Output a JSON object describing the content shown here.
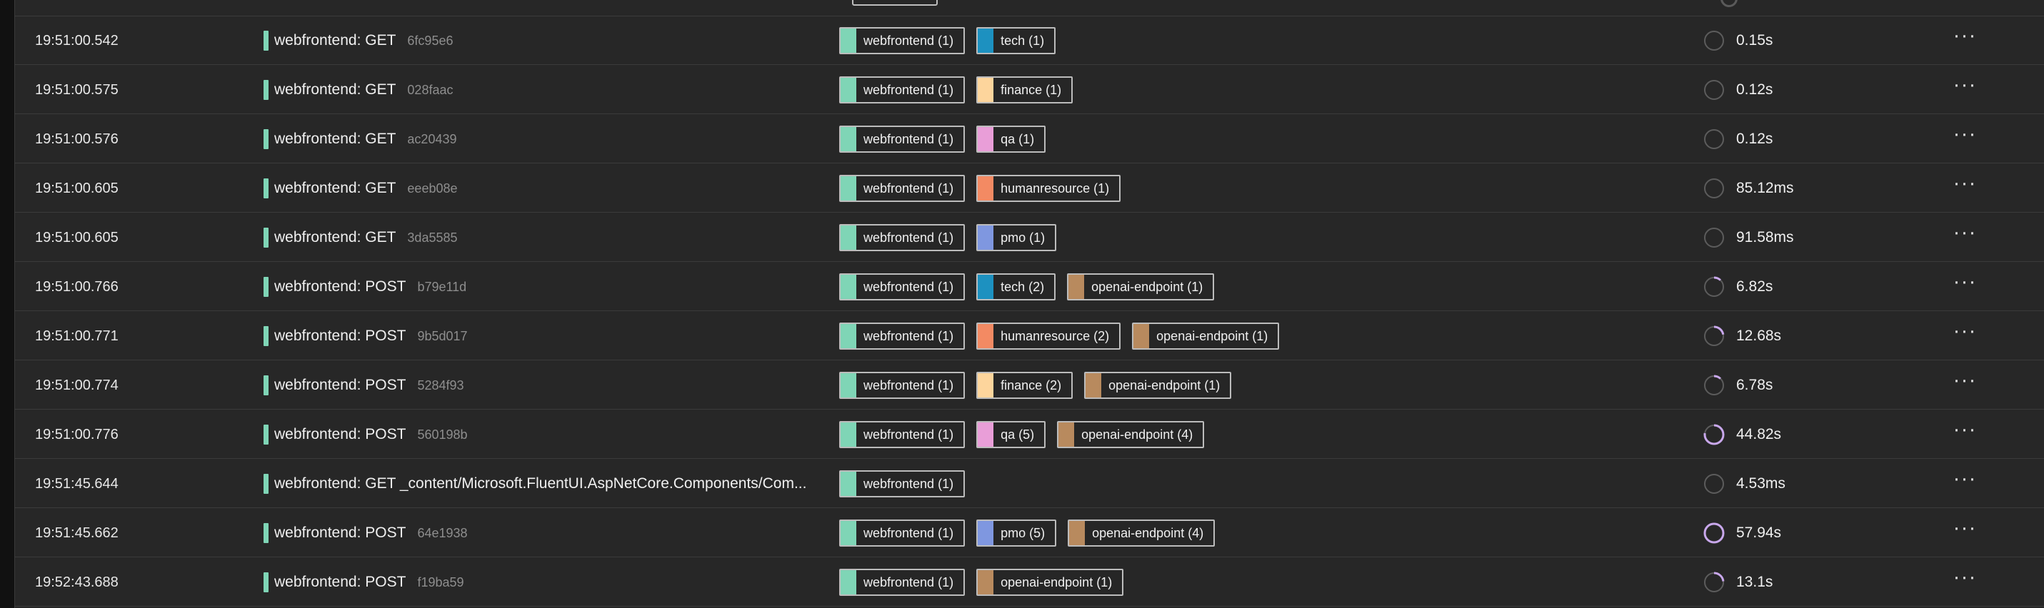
{
  "colors": {
    "webfrontend": "#7fd5b6",
    "tech": "#1d91c0",
    "finance": "#fdd59c",
    "qa": "#e99ed8",
    "humanresource": "#f38a63",
    "pmo": "#7f97e0",
    "openai-endpoint": "#b88a5e"
  },
  "rows": [
    {
      "time": "19:51:00.542",
      "name": "webfrontend: GET",
      "id": "6fc95e6",
      "spans": [
        {
          "service": "webfrontend",
          "label": "webfrontend (1)"
        },
        {
          "service": "tech",
          "label": "tech (1)"
        }
      ],
      "progress": 0,
      "duration": "0.15s"
    },
    {
      "time": "19:51:00.575",
      "name": "webfrontend: GET",
      "id": "028faac",
      "spans": [
        {
          "service": "webfrontend",
          "label": "webfrontend (1)"
        },
        {
          "service": "finance",
          "label": "finance (1)"
        }
      ],
      "progress": 0,
      "duration": "0.12s"
    },
    {
      "time": "19:51:00.576",
      "name": "webfrontend: GET",
      "id": "ac20439",
      "spans": [
        {
          "service": "webfrontend",
          "label": "webfrontend (1)"
        },
        {
          "service": "qa",
          "label": "qa (1)"
        }
      ],
      "progress": 0,
      "duration": "0.12s"
    },
    {
      "time": "19:51:00.605",
      "name": "webfrontend: GET",
      "id": "eeeb08e",
      "spans": [
        {
          "service": "webfrontend",
          "label": "webfrontend (1)"
        },
        {
          "service": "humanresource",
          "label": "humanresource (1)"
        }
      ],
      "progress": 0,
      "duration": "85.12ms"
    },
    {
      "time": "19:51:00.605",
      "name": "webfrontend: GET",
      "id": "3da5585",
      "spans": [
        {
          "service": "webfrontend",
          "label": "webfrontend (1)"
        },
        {
          "service": "pmo",
          "label": "pmo (1)"
        }
      ],
      "progress": 0,
      "duration": "91.58ms"
    },
    {
      "time": "19:51:00.766",
      "name": "webfrontend: POST",
      "id": "b79e11d",
      "spans": [
        {
          "service": "webfrontend",
          "label": "webfrontend (1)"
        },
        {
          "service": "tech",
          "label": "tech (2)"
        },
        {
          "service": "openai-endpoint",
          "label": "openai-endpoint (1)"
        }
      ],
      "progress": 0.12,
      "duration": "6.82s"
    },
    {
      "time": "19:51:00.771",
      "name": "webfrontend: POST",
      "id": "9b5d017",
      "spans": [
        {
          "service": "webfrontend",
          "label": "webfrontend (1)"
        },
        {
          "service": "humanresource",
          "label": "humanresource (2)"
        },
        {
          "service": "openai-endpoint",
          "label": "openai-endpoint (1)"
        }
      ],
      "progress": 0.22,
      "duration": "12.68s"
    },
    {
      "time": "19:51:00.774",
      "name": "webfrontend: POST",
      "id": "5284f93",
      "spans": [
        {
          "service": "webfrontend",
          "label": "webfrontend (1)"
        },
        {
          "service": "finance",
          "label": "finance (2)"
        },
        {
          "service": "openai-endpoint",
          "label": "openai-endpoint (1)"
        }
      ],
      "progress": 0.12,
      "duration": "6.78s"
    },
    {
      "time": "19:51:00.776",
      "name": "webfrontend: POST",
      "id": "560198b",
      "spans": [
        {
          "service": "webfrontend",
          "label": "webfrontend (1)"
        },
        {
          "service": "qa",
          "label": "qa (5)"
        },
        {
          "service": "openai-endpoint",
          "label": "openai-endpoint (4)"
        }
      ],
      "progress": 0.77,
      "duration": "44.82s"
    },
    {
      "time": "19:51:45.644",
      "name": "webfrontend: GET _content/Microsoft.FluentUI.AspNetCore.Components/Com...",
      "id": "",
      "spans": [
        {
          "service": "webfrontend",
          "label": "webfrontend (1)"
        }
      ],
      "progress": 0,
      "duration": "4.53ms"
    },
    {
      "time": "19:51:45.662",
      "name": "webfrontend: POST",
      "id": "64e1938",
      "spans": [
        {
          "service": "webfrontend",
          "label": "webfrontend (1)"
        },
        {
          "service": "pmo",
          "label": "pmo (5)"
        },
        {
          "service": "openai-endpoint",
          "label": "openai-endpoint (4)"
        }
      ],
      "progress": 1.0,
      "duration": "57.94s"
    },
    {
      "time": "19:52:43.688",
      "name": "webfrontend: POST",
      "id": "f19ba59",
      "spans": [
        {
          "service": "webfrontend",
          "label": "webfrontend (1)"
        },
        {
          "service": "openai-endpoint",
          "label": "openai-endpoint (1)"
        }
      ],
      "progress": 0.23,
      "duration": "13.1s"
    }
  ],
  "actions_icon": "ellipsis-icon",
  "actions_glyph": "···"
}
